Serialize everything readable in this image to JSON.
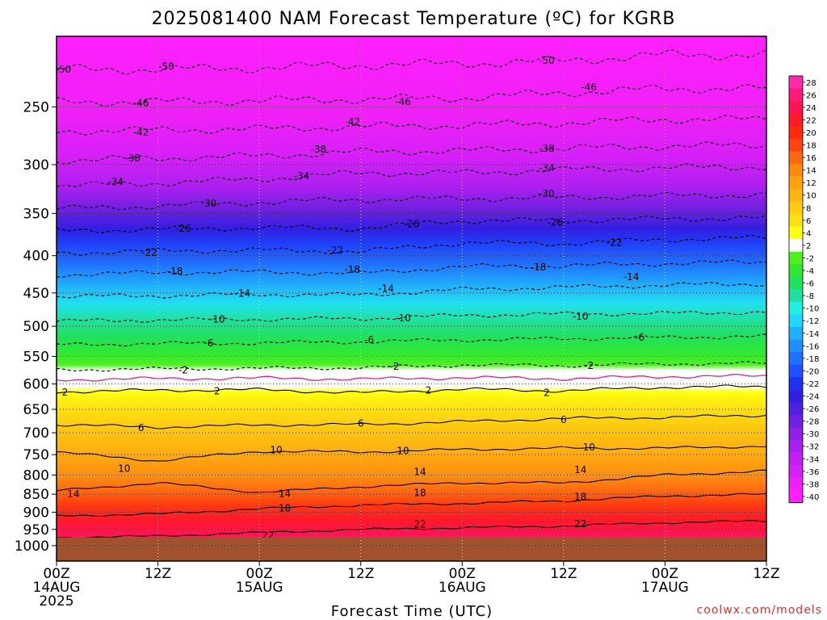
{
  "chart_data": {
    "type": "heatmap",
    "title": "2025081400 NAM Forecast Temperature (ºC) for KGRB",
    "xlabel": "Forecast Time (UTC)",
    "ylabel": "",
    "credit": "coolwx.com/models",
    "y_ticks": [
      250,
      300,
      350,
      400,
      450,
      500,
      550,
      600,
      650,
      700,
      750,
      800,
      850,
      900,
      950,
      1000
    ],
    "ylim": [
      1050,
      200
    ],
    "x_ticks": [
      {
        "hour": 0,
        "lines": [
          "00Z",
          "14AUG",
          "2025"
        ]
      },
      {
        "hour": 12,
        "lines": [
          "12Z"
        ]
      },
      {
        "hour": 24,
        "lines": [
          "00Z",
          "15AUG"
        ]
      },
      {
        "hour": 36,
        "lines": [
          "12Z"
        ]
      },
      {
        "hour": 48,
        "lines": [
          "00Z",
          "16AUG"
        ]
      },
      {
        "hour": 60,
        "lines": [
          "12Z"
        ]
      },
      {
        "hour": 72,
        "lines": [
          "00Z",
          "17AUG"
        ]
      },
      {
        "hour": 84,
        "lines": [
          "12Z"
        ]
      }
    ],
    "xlim": [
      0,
      84
    ],
    "grid": "dotted",
    "colorbar": {
      "labels": [
        28,
        26,
        24,
        22,
        20,
        18,
        16,
        14,
        12,
        10,
        8,
        6,
        4,
        2,
        -2,
        -4,
        -6,
        -8,
        -10,
        -12,
        -14,
        -16,
        -18,
        -20,
        -22,
        -24,
        -26,
        -28,
        -30,
        -32,
        -34,
        -36,
        -38,
        -40
      ],
      "colors": [
        "#ff2aa8",
        "#ff1a7a",
        "#ff1450",
        "#ff1a28",
        "#ff2a10",
        "#ff4410",
        "#ff6a10",
        "#ff8a10",
        "#ffa210",
        "#ffb410",
        "#ffcc10",
        "#ffe010",
        "#ffff10",
        "#ffffff",
        "#50f020",
        "#30e830",
        "#20e060",
        "#20e0a0",
        "#20f0e0",
        "#20d8ff",
        "#20b0ff",
        "#2090ff",
        "#2070ff",
        "#2050ff",
        "#2030f0",
        "#3020e0",
        "#5020e0",
        "#7020e0",
        "#9020e8",
        "#a820f0",
        "#c020f0",
        "#d820f8",
        "#f020f8",
        "#ff20ff"
      ]
    },
    "surface": {
      "pressure": 975,
      "color": "#a0522d"
    },
    "contours": [
      {
        "level": -50,
        "type": "neg",
        "pts": [
          [
            0,
            222
          ],
          [
            12,
            222
          ],
          [
            24,
            221
          ],
          [
            36,
            219
          ],
          [
            48,
            218
          ],
          [
            60,
            216
          ],
          [
            72,
            212
          ],
          [
            84,
            212
          ]
        ],
        "labels": [
          [
            0.8,
            222
          ],
          [
            13,
            220
          ],
          [
            58,
            216
          ]
        ]
      },
      {
        "level": -46,
        "type": "neg",
        "pts": [
          [
            0,
            246
          ],
          [
            12,
            246
          ],
          [
            24,
            245
          ],
          [
            36,
            244
          ],
          [
            48,
            243
          ],
          [
            60,
            239
          ],
          [
            72,
            236
          ],
          [
            84,
            236
          ]
        ],
        "labels": [
          [
            10,
            247
          ],
          [
            41,
            246
          ],
          [
            63,
            235
          ]
        ]
      },
      {
        "level": -42,
        "type": "neg",
        "pts": [
          [
            0,
            270
          ],
          [
            12,
            269
          ],
          [
            24,
            268
          ],
          [
            36,
            266
          ],
          [
            48,
            265
          ],
          [
            60,
            263
          ],
          [
            72,
            260
          ],
          [
            84,
            260
          ]
        ],
        "labels": [
          [
            10,
            271
          ],
          [
            35,
            262
          ]
        ]
      },
      {
        "level": -38,
        "type": "neg",
        "pts": [
          [
            0,
            296
          ],
          [
            12,
            294
          ],
          [
            24,
            292
          ],
          [
            36,
            288
          ],
          [
            48,
            287
          ],
          [
            60,
            285
          ],
          [
            72,
            283
          ],
          [
            84,
            282
          ]
        ],
        "labels": [
          [
            9,
            294
          ],
          [
            31,
            286
          ],
          [
            58,
            285
          ]
        ]
      },
      {
        "level": -34,
        "type": "neg",
        "pts": [
          [
            0,
            321
          ],
          [
            12,
            318
          ],
          [
            24,
            314
          ],
          [
            36,
            308
          ],
          [
            48,
            308
          ],
          [
            60,
            305
          ],
          [
            72,
            303
          ],
          [
            84,
            302
          ]
        ],
        "labels": [
          [
            7,
            317
          ],
          [
            29,
            311
          ],
          [
            58,
            303
          ]
        ]
      },
      {
        "level": -30,
        "type": "neg",
        "pts": [
          [
            0,
            345
          ],
          [
            12,
            342
          ],
          [
            24,
            338
          ],
          [
            36,
            335
          ],
          [
            48,
            334
          ],
          [
            60,
            333
          ],
          [
            72,
            331
          ],
          [
            84,
            330
          ]
        ],
        "labels": [
          [
            18,
            339
          ],
          [
            58,
            329
          ]
        ]
      },
      {
        "level": -26,
        "type": "neg",
        "pts": [
          [
            0,
            370
          ],
          [
            12,
            368
          ],
          [
            24,
            366
          ],
          [
            36,
            367
          ],
          [
            48,
            358
          ],
          [
            60,
            358
          ],
          [
            72,
            356
          ],
          [
            84,
            355
          ]
        ],
        "labels": [
          [
            15,
            367
          ],
          [
            42,
            362
          ],
          [
            59,
            360
          ]
        ]
      },
      {
        "level": -22,
        "type": "neg",
        "pts": [
          [
            0,
            397
          ],
          [
            12,
            394
          ],
          [
            24,
            393
          ],
          [
            36,
            395
          ],
          [
            48,
            384
          ],
          [
            60,
            385
          ],
          [
            72,
            380
          ],
          [
            84,
            378
          ]
        ],
        "labels": [
          [
            11,
            396
          ],
          [
            33,
            393
          ],
          [
            66,
            384
          ]
        ]
      },
      {
        "level": -18,
        "type": "neg",
        "pts": [
          [
            0,
            425
          ],
          [
            12,
            422
          ],
          [
            24,
            421
          ],
          [
            36,
            423
          ],
          [
            48,
            414
          ],
          [
            60,
            413
          ],
          [
            72,
            410
          ],
          [
            84,
            408
          ]
        ],
        "labels": [
          [
            14,
            420
          ],
          [
            35,
            418
          ],
          [
            57,
            415
          ]
        ]
      },
      {
        "level": -14,
        "type": "neg",
        "pts": [
          [
            0,
            455
          ],
          [
            12,
            454
          ],
          [
            24,
            452
          ],
          [
            36,
            453
          ],
          [
            48,
            445
          ],
          [
            60,
            442
          ],
          [
            72,
            439
          ],
          [
            84,
            437
          ]
        ],
        "labels": [
          [
            22,
            451
          ],
          [
            39,
            444
          ],
          [
            68,
            428
          ]
        ]
      },
      {
        "level": -10,
        "type": "neg",
        "pts": [
          [
            0,
            492
          ],
          [
            12,
            490
          ],
          [
            24,
            489
          ],
          [
            36,
            488
          ],
          [
            48,
            483
          ],
          [
            60,
            481
          ],
          [
            72,
            480
          ],
          [
            84,
            478
          ]
        ],
        "labels": [
          [
            19,
            489
          ],
          [
            41,
            487
          ],
          [
            62,
            485
          ]
        ]
      },
      {
        "level": -6,
        "type": "neg",
        "pts": [
          [
            0,
            530
          ],
          [
            12,
            528
          ],
          [
            24,
            527
          ],
          [
            36,
            525
          ],
          [
            48,
            522
          ],
          [
            60,
            520
          ],
          [
            72,
            518
          ],
          [
            84,
            516
          ]
        ],
        "labels": [
          [
            18,
            527
          ],
          [
            37,
            522
          ],
          [
            69,
            518
          ]
        ]
      },
      {
        "level": -2,
        "type": "neg",
        "pts": [
          [
            0,
            574
          ],
          [
            12,
            572
          ],
          [
            24,
            571
          ],
          [
            36,
            570
          ],
          [
            48,
            565
          ],
          [
            60,
            566
          ],
          [
            72,
            563
          ],
          [
            84,
            562
          ]
        ],
        "labels": [
          [
            15,
            574
          ],
          [
            40,
            568
          ],
          [
            63,
            566
          ]
        ]
      },
      {
        "level": 0,
        "type": "zero",
        "pts": [
          [
            0,
            592
          ],
          [
            12,
            590
          ],
          [
            24,
            589
          ],
          [
            36,
            591
          ],
          [
            48,
            588
          ],
          [
            60,
            590
          ],
          [
            72,
            586
          ],
          [
            84,
            585
          ]
        ],
        "labels": []
      },
      {
        "level": 2,
        "type": "pos",
        "pts": [
          [
            0,
            615
          ],
          [
            12,
            612
          ],
          [
            24,
            611
          ],
          [
            36,
            617
          ],
          [
            48,
            610
          ],
          [
            60,
            613
          ],
          [
            72,
            606
          ],
          [
            84,
            605
          ]
        ],
        "labels": [
          [
            1,
            616
          ],
          [
            19,
            614
          ],
          [
            44,
            612
          ],
          [
            58,
            617
          ]
        ]
      },
      {
        "level": 6,
        "type": "pos",
        "pts": [
          [
            0,
            682
          ],
          [
            12,
            688
          ],
          [
            24,
            683
          ],
          [
            36,
            682
          ],
          [
            48,
            676
          ],
          [
            60,
            669
          ],
          [
            72,
            667
          ],
          [
            84,
            662
          ]
        ],
        "labels": [
          [
            10,
            689
          ],
          [
            36,
            680
          ],
          [
            60,
            672
          ]
        ]
      },
      {
        "level": 10,
        "type": "pos",
        "pts": [
          [
            0,
            744
          ],
          [
            12,
            765
          ],
          [
            24,
            742
          ],
          [
            36,
            744
          ],
          [
            48,
            738
          ],
          [
            60,
            735
          ],
          [
            72,
            735
          ],
          [
            84,
            730
          ]
        ],
        "labels": [
          [
            8,
            784
          ],
          [
            26,
            739
          ],
          [
            41,
            741
          ],
          [
            63,
            733
          ]
        ]
      },
      {
        "level": 14,
        "type": "pos",
        "pts": [
          [
            0,
            841
          ],
          [
            12,
            820
          ],
          [
            24,
            845
          ],
          [
            36,
            830
          ],
          [
            48,
            820
          ],
          [
            60,
            820
          ],
          [
            72,
            800
          ],
          [
            84,
            790
          ]
        ],
        "labels": [
          [
            2,
            850
          ],
          [
            27,
            849
          ],
          [
            43,
            792
          ],
          [
            62,
            787
          ]
        ]
      },
      {
        "level": 18,
        "type": "pos",
        "pts": [
          [
            0,
            910
          ],
          [
            12,
            905
          ],
          [
            24,
            890
          ],
          [
            36,
            880
          ],
          [
            48,
            875
          ],
          [
            60,
            868
          ],
          [
            72,
            855
          ],
          [
            84,
            850
          ]
        ],
        "labels": [
          [
            27,
            888
          ],
          [
            43,
            846
          ],
          [
            62,
            857
          ]
        ]
      },
      {
        "level": 22,
        "type": "pos",
        "pts": [
          [
            0,
            975
          ],
          [
            12,
            970
          ],
          [
            24,
            960
          ],
          [
            36,
            950
          ],
          [
            48,
            945
          ],
          [
            60,
            940
          ],
          [
            72,
            930
          ],
          [
            84,
            925
          ]
        ],
        "labels": [
          [
            25,
            969
          ],
          [
            43,
            935
          ],
          [
            62,
            934
          ]
        ]
      }
    ]
  }
}
